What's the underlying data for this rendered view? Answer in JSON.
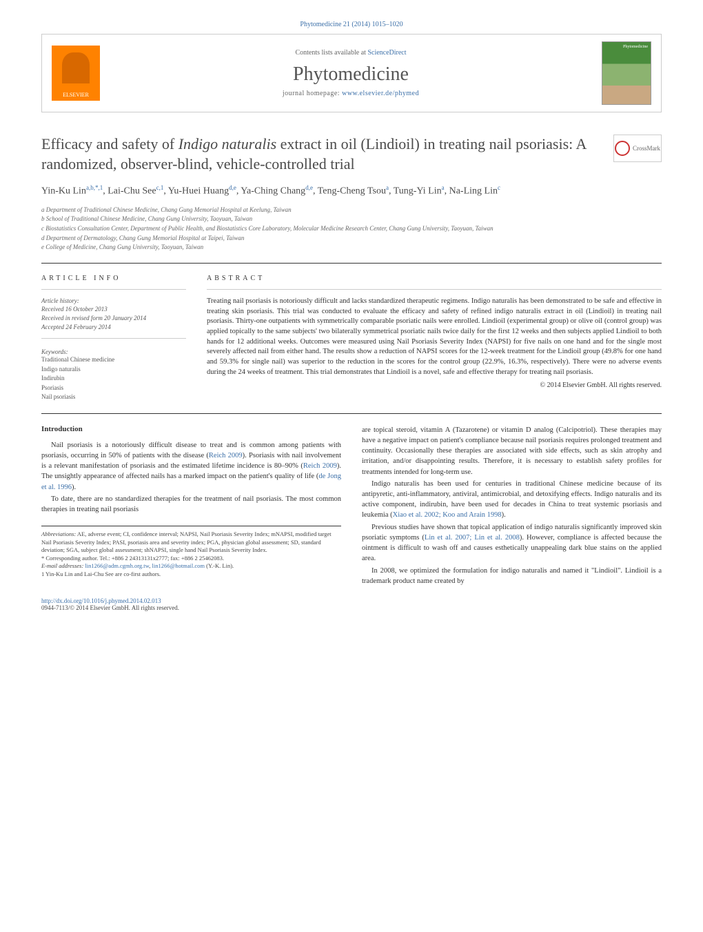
{
  "header": {
    "citation": "Phytomedicine 21 (2014) 1015–1020",
    "contents_prefix": "Contents lists available at ",
    "contents_link": "ScienceDirect",
    "journal": "Phytomedicine",
    "homepage_prefix": "journal homepage: ",
    "homepage_link": "www.elsevier.de/phymed",
    "elsevier_label": "ELSEVIER",
    "cover_label": "Phytomedicine"
  },
  "crossmark": {
    "label": "CrossMark"
  },
  "title": {
    "pre": "Efficacy and safety of ",
    "italic": "Indigo naturalis",
    "post": " extract in oil (Lindioil) in treating nail psoriasis: A randomized, observer-blind, vehicle-controlled trial"
  },
  "authors": "Yin-Ku Lin",
  "authors_sup1": "a,b,*,1",
  "authors2": ", Lai-Chu See",
  "authors_sup2": "c,1",
  "authors3": ", Yu-Huei Huang",
  "authors_sup3": "d,e",
  "authors4": ", Ya-Ching Chang",
  "authors_sup4": "d,e",
  "authors5": ", Teng-Cheng Tsou",
  "authors_sup5": "a",
  "authors6": ", Tung-Yi Lin",
  "authors_sup6": "a",
  "authors7": ", Na-Ling Lin",
  "authors_sup7": "c",
  "affiliations": {
    "a": "a Department of Traditional Chinese Medicine, Chang Gung Memorial Hospital at Keelung, Taiwan",
    "b": "b School of Traditional Chinese Medicine, Chang Gung University, Taoyuan, Taiwan",
    "c": "c Biostatistics Consultation Center, Department of Public Health, and Biostatistics Core Laboratory, Molecular Medicine Research Center, Chang Gung University, Taoyuan, Taiwan",
    "d": "d Department of Dermatology, Chang Gung Memorial Hospital at Taipei, Taiwan",
    "e": "e College of Medicine, Chang Gung University, Taoyuan, Taiwan"
  },
  "article_info": {
    "heading": "ARTICLE INFO",
    "history_label": "Article history:",
    "received": "Received 16 October 2013",
    "revised": "Received in revised form 20 January 2014",
    "accepted": "Accepted 24 February 2014",
    "keywords_label": "Keywords:",
    "keywords": [
      "Traditional Chinese medicine",
      "Indigo naturalis",
      "Indirubin",
      "Psoriasis",
      "Nail psoriasis"
    ]
  },
  "abstract": {
    "heading": "ABSTRACT",
    "text": "Treating nail psoriasis is notoriously difficult and lacks standardized therapeutic regimens. Indigo naturalis has been demonstrated to be safe and effective in treating skin psoriasis. This trial was conducted to evaluate the efficacy and safety of refined indigo naturalis extract in oil (Lindioil) in treating nail psoriasis. Thirty-one outpatients with symmetrically comparable psoriatic nails were enrolled. Lindioil (experimental group) or olive oil (control group) was applied topically to the same subjects' two bilaterally symmetrical psoriatic nails twice daily for the first 12 weeks and then subjects applied Lindioil to both hands for 12 additional weeks. Outcomes were measured using Nail Psoriasis Severity Index (NAPSI) for five nails on one hand and for the single most severely affected nail from either hand. The results show a reduction of NAPSI scores for the 12-week treatment for the Lindioil group (49.8% for one hand and 59.3% for single nail) was superior to the reduction in the scores for the control group (22.9%, 16.3%, respectively). There were no adverse events during the 24 weeks of treatment. This trial demonstrates that Lindioil is a novel, safe and effective therapy for treating nail psoriasis.",
    "copyright": "© 2014 Elsevier GmbH. All rights reserved."
  },
  "body": {
    "intro_heading": "Introduction",
    "p1a": "Nail psoriasis is a notoriously difficult disease to treat and is common among patients with psoriasis, occurring in 50% of patients with the disease (",
    "p1_cite1": "Reich 2009",
    "p1b": "). Psoriasis with nail involvement is a relevant manifestation of psoriasis and the estimated lifetime incidence is 80–90% (",
    "p1_cite2": "Reich 2009",
    "p1c": "). The unsightly appearance of affected nails has a marked impact on the patient's quality of life (",
    "p1_cite3": "de Jong et al. 1996",
    "p1d": ").",
    "p2": "To date, there are no standardized therapies for the treatment of nail psoriasis. The most common therapies in treating nail psoriasis",
    "p3": "are topical steroid, vitamin A (Tazarotene) or vitamin D analog (Calcipotriol). These therapies may have a negative impact on patient's compliance because nail psoriasis requires prolonged treatment and continuity. Occasionally these therapies are associated with side effects, such as skin atrophy and irritation, and/or disappointing results. Therefore, it is necessary to establish safety profiles for treatments intended for long-term use.",
    "p4a": "Indigo naturalis has been used for centuries in traditional Chinese medicine because of its antipyretic, anti-inflammatory, antiviral, antimicrobial, and detoxifying effects. Indigo naturalis and its active component, indirubin, have been used for decades in China to treat systemic psoriasis and leukemia (",
    "p4_cite": "Xiao et al. 2002; Koo and Arain 1998",
    "p4b": ").",
    "p5a": "Previous studies have shown that topical application of indigo naturalis significantly improved skin psoriatic symptoms (",
    "p5_cite": "Lin et al. 2007; Lin et al. 2008",
    "p5b": "). However, compliance is affected because the ointment is difficult to wash off and causes esthetically unappealing dark blue stains on the applied area.",
    "p6": "In 2008, we optimized the formulation for indigo naturalis and named it \"Lindioil\". Lindioil is a trademark product name created by"
  },
  "footnotes": {
    "abbrev_label": "Abbreviations:",
    "abbrev_text": " AE, adverse event; CI, confidence interval; NAPSI, Nail Psoriasis Severity Index; mNAPSI, modified target Nail Psoriasis Severity Index; PASI, psoriasis area and severity index; PGA, physician global assessment; SD, standard deviation; SGA, subject global assessment; shNAPSI, single hand Nail Psoriasis Severity Index.",
    "corr_label": "* Corresponding author. Tel.: +886 2 24313131x2777; fax: +886 2 25462083.",
    "email_label": "E-mail addresses: ",
    "email1": "lin1266@adm.cgmh.org.tw",
    "email_sep": ", ",
    "email2": "lin1266@hotmail.com",
    "email_tail": " (Y.-K. Lin).",
    "cofirst": "1 Yin-Ku Lin and Lai-Chu See are co-first authors."
  },
  "doi": {
    "link": "http://dx.doi.org/10.1016/j.phymed.2014.02.013",
    "issn": "0944-7113/© 2014 Elsevier GmbH. All rights reserved."
  },
  "colors": {
    "link": "#3b6fa8",
    "elsevier_orange": "#ff8200",
    "cover_green": "#4a8c3c",
    "text": "#333333",
    "gray": "#666666"
  }
}
